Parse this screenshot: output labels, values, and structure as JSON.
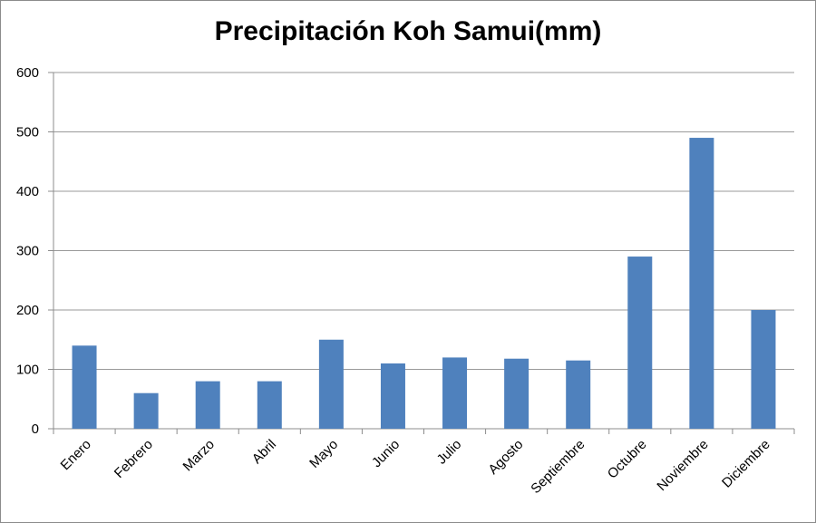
{
  "chart_data": {
    "type": "bar",
    "title": "Precipitación Koh Samui(mm)",
    "categories": [
      "Enero",
      "Febrero",
      "Marzo",
      "Abril",
      "Mayo",
      "Junio",
      "Julio",
      "Agosto",
      "Septiembre",
      "Octubre",
      "Noviembre",
      "Diciembre"
    ],
    "values": [
      140,
      60,
      80,
      80,
      150,
      110,
      120,
      118,
      115,
      290,
      490,
      200
    ],
    "ylim": [
      0,
      600
    ],
    "yticks": [
      0,
      100,
      200,
      300,
      400,
      500,
      600
    ],
    "grid": true,
    "bar_color": "#4f81bd",
    "grid_color": "#9a9a9a"
  }
}
